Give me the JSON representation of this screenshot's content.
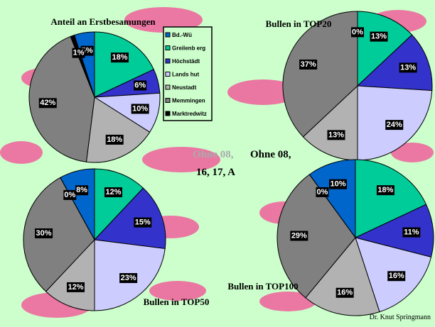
{
  "chart_data": [
    {
      "type": "pie",
      "title": "Anteil an Erstbesamungen",
      "categories": [
        "Bd.-Wü",
        "Greilenb erg",
        "Höchstädt",
        "Lands hut",
        "Neustadt",
        "Memmingen",
        "Marktredwitz"
      ],
      "values": [
        5,
        18,
        6,
        10,
        18,
        42,
        1
      ],
      "value_labels": [
        "5%",
        "18%",
        "6%",
        "10%",
        "18%",
        "42%",
        "1%"
      ],
      "colors": [
        "#0066cc",
        "#00cc99",
        "#3333cc",
        "#ccccff",
        "#b2b2b2",
        "#808080",
        "#000000"
      ]
    },
    {
      "type": "pie",
      "title": "Bullen in TOP20",
      "values": [
        0,
        13,
        13,
        24,
        13,
        37
      ],
      "value_labels": [
        "0%",
        "13%",
        "13%",
        "24%",
        "13%",
        "37%"
      ],
      "colors": [
        "#0066cc",
        "#00cc99",
        "#3333cc",
        "#ccccff",
        "#b2b2b2",
        "#808080"
      ]
    },
    {
      "type": "pie",
      "title": "Bullen in TOP50",
      "values": [
        8,
        12,
        15,
        23,
        12,
        30,
        0
      ],
      "value_labels": [
        "8%",
        "12%",
        "15%",
        "23%",
        "12%",
        "30%",
        "0%"
      ],
      "colors": [
        "#0066cc",
        "#00cc99",
        "#3333cc",
        "#ccccff",
        "#b2b2b2",
        "#808080",
        "#000000"
      ]
    },
    {
      "type": "pie",
      "title": "Bullen in TOP100",
      "values": [
        10,
        18,
        11,
        16,
        16,
        29,
        0
      ],
      "value_labels": [
        "10%",
        "18%",
        "11%",
        "16%",
        "16%",
        "29%",
        "0%"
      ],
      "colors": [
        "#0066cc",
        "#00cc99",
        "#3333cc",
        "#ccccff",
        "#b2b2b2",
        "#808080",
        "#000000"
      ]
    }
  ],
  "annotations": {
    "ghost": "Ohne 08,",
    "main_line1": "Ohne 08,",
    "main_line2": "16, 17, A"
  },
  "footer": "Dr. Knut Springmann"
}
